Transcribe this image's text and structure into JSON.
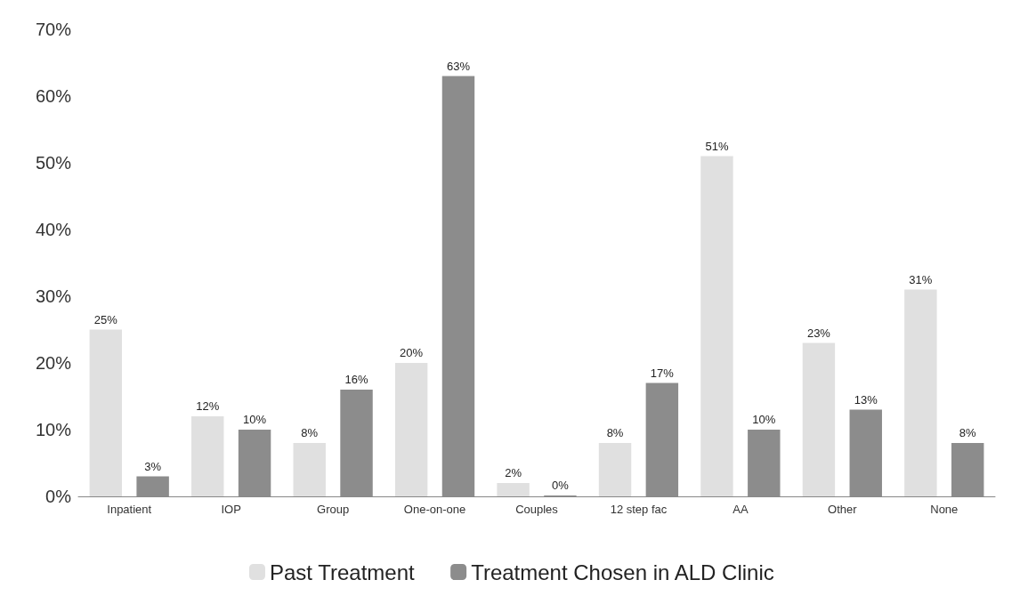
{
  "chart_data": {
    "type": "bar",
    "categories": [
      "Inpatient",
      "IOP",
      "Group",
      "One-on-one",
      "Couples",
      "12 step fac",
      "AA",
      "Other",
      "None"
    ],
    "series": [
      {
        "name": "Past Treatment",
        "color": "#e0e0e0",
        "values": [
          25,
          12,
          8,
          20,
          2,
          8,
          51,
          23,
          31
        ],
        "value_labels": [
          "25%",
          "12%",
          "8%",
          "20%",
          "2%",
          "8%",
          "51%",
          "23%",
          "31%"
        ]
      },
      {
        "name": "Treatment Chosen in ALD Clinic",
        "color": "#8c8c8c",
        "values": [
          3,
          10,
          16,
          63,
          0,
          17,
          10,
          13,
          8
        ],
        "value_labels": [
          "3%",
          "10%",
          "16%",
          "63%",
          "0%",
          "17%",
          "10%",
          "13%",
          "8%"
        ]
      }
    ],
    "ylim": [
      0,
      70
    ],
    "yticks": [
      {
        "value": 0,
        "label": "0%"
      },
      {
        "value": 10,
        "label": "10%"
      },
      {
        "value": 20,
        "label": "20%"
      },
      {
        "value": 30,
        "label": "30%"
      },
      {
        "value": 40,
        "label": "40%"
      },
      {
        "value": 50,
        "label": "50%"
      },
      {
        "value": 60,
        "label": "60%"
      },
      {
        "value": 70,
        "label": "70%"
      }
    ],
    "grid": false,
    "legend": "bottom"
  }
}
